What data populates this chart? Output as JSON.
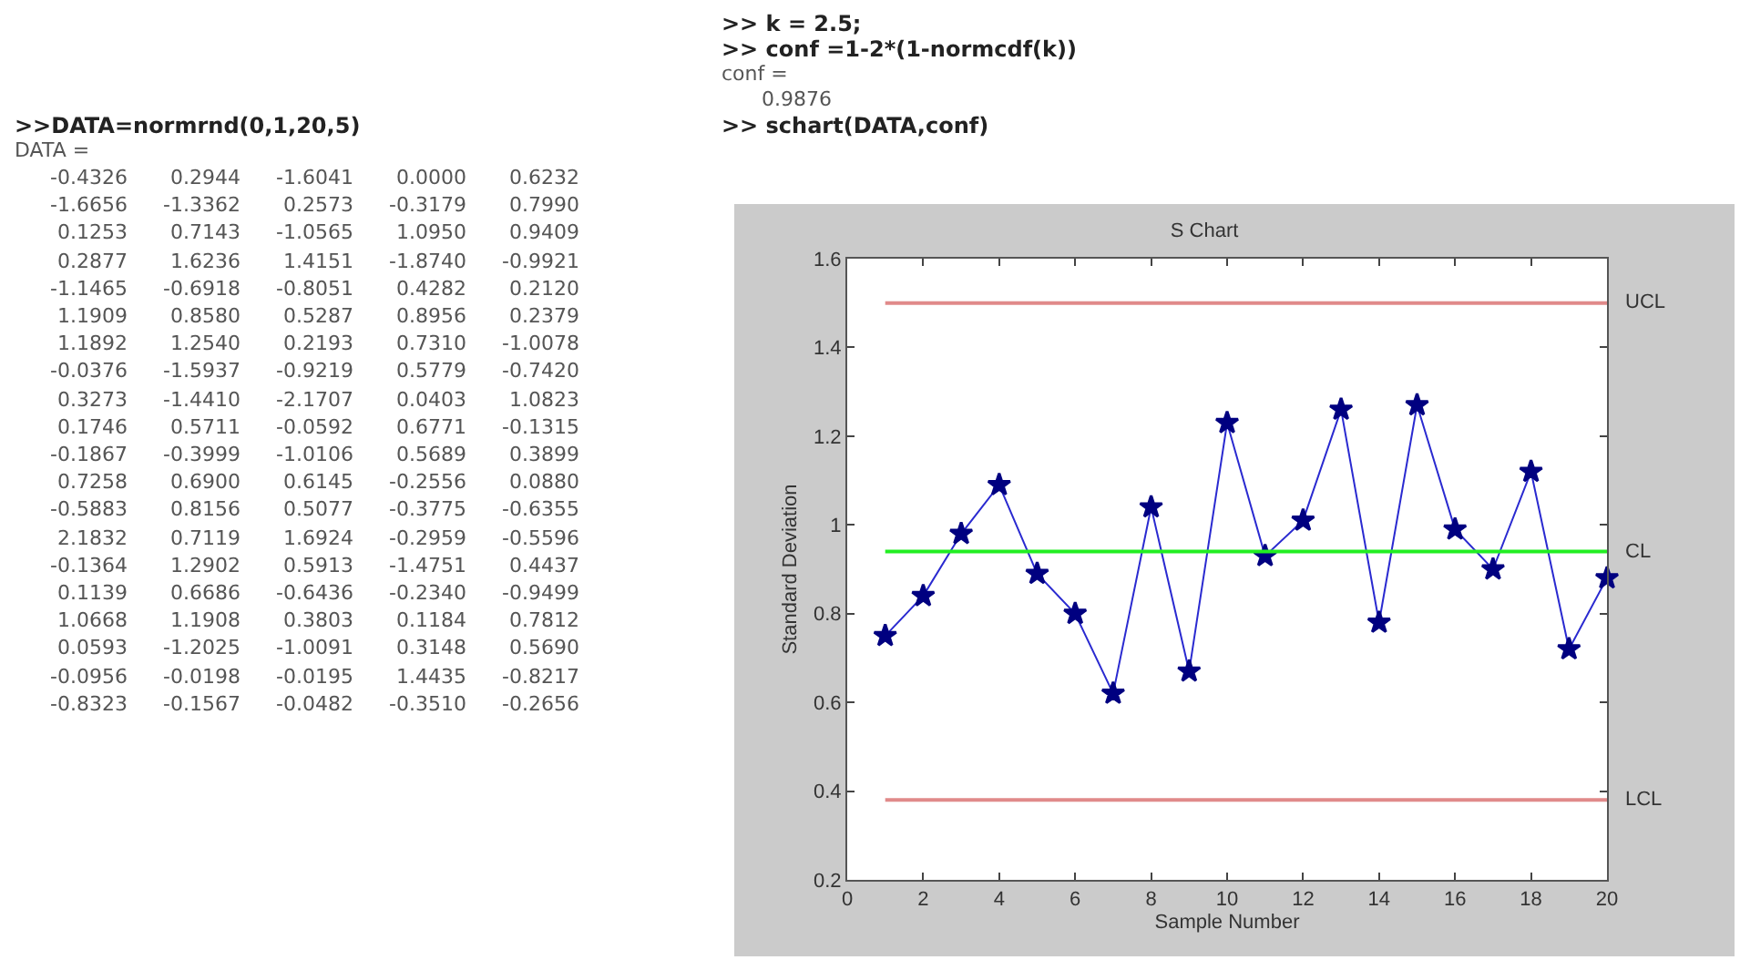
{
  "chart_data": {
    "type": "line",
    "title": "S Chart",
    "xlabel": "Sample Number",
    "ylabel": "Standard Deviation",
    "x": [
      1,
      2,
      3,
      4,
      5,
      6,
      7,
      8,
      9,
      10,
      11,
      12,
      13,
      14,
      15,
      16,
      17,
      18,
      19,
      20
    ],
    "series": [
      {
        "color": "#2a2ad0",
        "values": [
          0.75,
          0.84,
          0.98,
          1.09,
          0.89,
          0.8,
          0.62,
          1.04,
          0.67,
          1.23,
          0.93,
          1.01,
          1.26,
          0.78,
          1.27,
          0.99,
          0.9,
          1.12,
          0.72,
          0.88
        ]
      }
    ],
    "marker": "star",
    "line_style": "solid",
    "grid": false,
    "xlim": [
      0,
      20
    ],
    "xticks": [
      0,
      2,
      4,
      6,
      8,
      10,
      12,
      14,
      16,
      18,
      20
    ],
    "ylim": [
      0.2,
      1.6
    ],
    "yticks": [
      0.2,
      0.4,
      0.6,
      0.8,
      1,
      1.2,
      1.4,
      1.6
    ],
    "ref_lines": [
      {
        "axis": "y",
        "value": 1.5,
        "label": "UCL",
        "color": "#e08a8a"
      },
      {
        "axis": "y",
        "value": 0.94,
        "label": "CL",
        "color": "#22ee22"
      },
      {
        "axis": "y",
        "value": 0.38,
        "label": "LCL",
        "color": "#e08a8a"
      }
    ],
    "annotations": [
      ">>DATA=normrnd(0,1,20,5)",
      "DATA =",
      "-0.4326 0.2944 -1.6041 0.0000 0.6232",
      "-1.6656 -1.3362 0.2573 -0.3179 0.7990",
      "0.1253 0.7143 -1.0565 1.0950 0.9409",
      "0.2877 1.6236 1.4151 -1.8740 -0.9921",
      "-1.1465 -0.6918 -0.8051 0.4282 0.2120",
      "1.1909 0.8580 0.5287 0.8956 0.2379",
      "1.1892 1.2540 0.2193 0.7310 -1.0078",
      "-0.0376 -1.5937 -0.9219 0.5779 -0.7420",
      "0.3273 -1.4410 -2.1707 0.0403 1.0823",
      "0.1746 0.5711 -0.0592 0.6771 -0.1315",
      "-0.1867 -0.3999 -1.0106 0.5689 0.3899",
      "0.7258 0.6900 0.6145 -0.2556 0.0880",
      "-0.5883 0.8156 0.5077 -0.3775 -0.6355",
      "2.1832 0.7119 1.6924 -0.2959 -0.5596",
      "-0.1364 1.2902 0.5913 -1.4751 0.4437",
      "0.1139 0.6686 -0.6436 -0.2340 -0.9499",
      "1.0668 1.1908 0.3803 0.1184 0.7812",
      "0.0593 -1.2025 -1.0091 0.3148 0.5690",
      "-0.0956 -0.0198 -0.0195 1.4435 -0.8217",
      "-0.8323 -0.1567 -0.0482 -0.3510 -0.2656",
      ">> k = 2.5;",
      ">> conf =1-2*(1-normcdf(k))",
      "conf =",
      "0.9876",
      ">> schart(DATA,conf)"
    ]
  }
}
